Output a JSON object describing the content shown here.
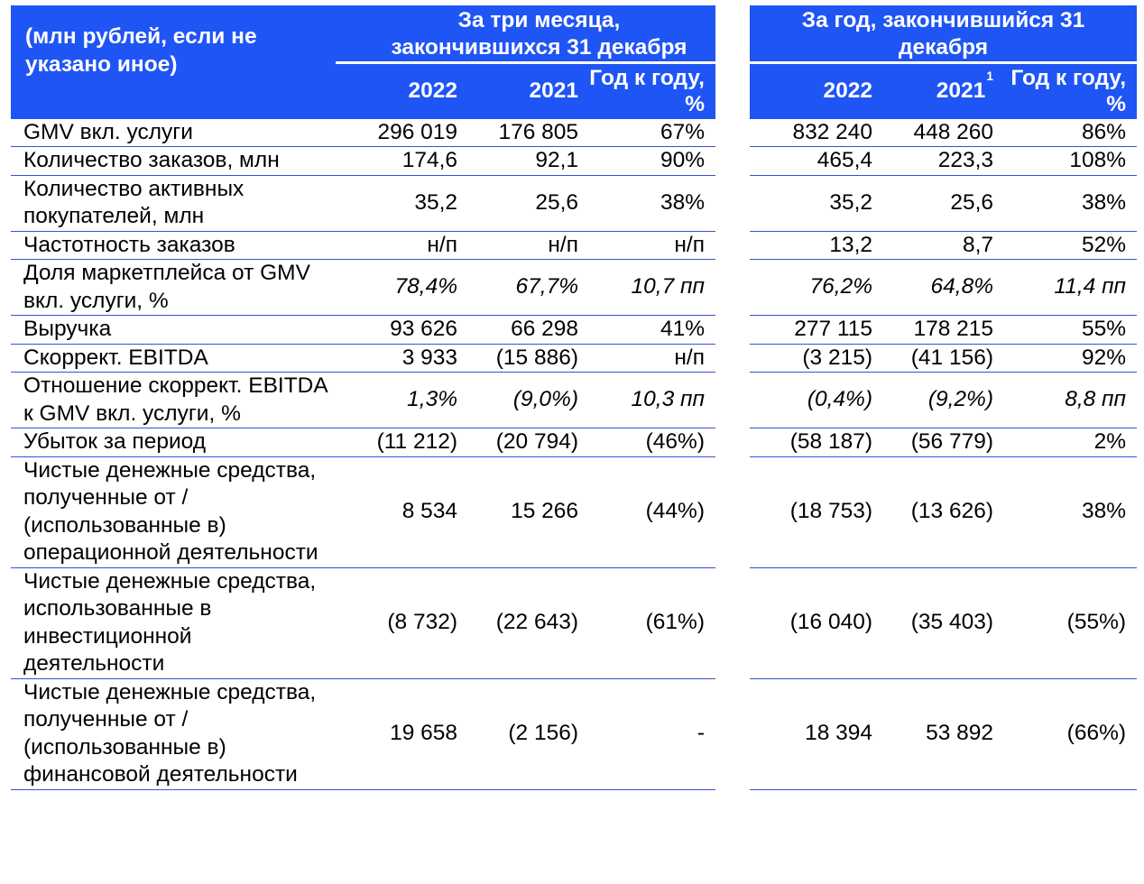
{
  "header": {
    "unit_label": "(млн рублей, если не указано иное)",
    "group_three_months": "За три месяца, закончившихся 31 декабря",
    "group_year": "За год, закончившийся 31 декабря",
    "three_months": {
      "col_2022": "2022",
      "col_2021": "2021",
      "col_yoy": "Год к году, %"
    },
    "year": {
      "col_2022": "2022",
      "col_2021": "2021",
      "col_2021_footnote": "1",
      "col_yoy": "Год к году, %"
    }
  },
  "rows": [
    {
      "label": "GMV вкл. услуги",
      "q2022": "296 019",
      "q2021": "176 805",
      "qyoy": "67%",
      "y2022": "832 240",
      "y2021": "448 260",
      "yyoy": "86%"
    },
    {
      "label": "Количество заказов, млн",
      "q2022": "174,6",
      "q2021": "92,1",
      "qyoy": "90%",
      "y2022": "465,4",
      "y2021": "223,3",
      "yyoy": "108%"
    },
    {
      "label": "Количество активных покупателей, млн",
      "q2022": "35,2",
      "q2021": "25,6",
      "qyoy": "38%",
      "y2022": "35,2",
      "y2021": "25,6",
      "yyoy": "38%"
    },
    {
      "label": "Частотность заказов",
      "q2022": "н/п",
      "q2021": "н/п",
      "qyoy": "н/п",
      "y2022": "13,2",
      "y2021": "8,7",
      "yyoy": "52%"
    },
    {
      "label": "Доля маркетплейса от GMV вкл. услуги, %",
      "q2022": "78,4%",
      "q2021": "67,7%",
      "qyoy": "10,7 пп",
      "y2022": "76,2%",
      "y2021": "64,8%",
      "yyoy": "11,4 пп"
    },
    {
      "label": "Выручка",
      "q2022": "93 626",
      "q2021": "66 298",
      "qyoy": "41%",
      "y2022": "277 115",
      "y2021": "178 215",
      "yyoy": "55%"
    },
    {
      "label": "Скоррект. EBITDA",
      "q2022": "3 933",
      "q2021": "(15 886)",
      "qyoy": "н/п",
      "y2022": "(3 215)",
      "y2021": "(41 156)",
      "yyoy": "92%"
    },
    {
      "label": "Отношение скоррект. EBITDA к GMV вкл. услуги, %",
      "q2022": "1,3%",
      "q2021": "(9,0%)",
      "qyoy": "10,3 пп",
      "y2022": "(0,4%)",
      "y2021": "(9,2%)",
      "yyoy": "8,8 пп"
    },
    {
      "label": "Убыток за период",
      "q2022": "(11 212)",
      "q2021": "(20 794)",
      "qyoy": "(46%)",
      "y2022": "(58 187)",
      "y2021": "(56 779)",
      "yyoy": "2%"
    },
    {
      "label": "Чистые денежные средства, полученные от / (использованные в) операционной деятельности",
      "q2022": "8 534",
      "q2021": "15 266",
      "qyoy": "(44%)",
      "y2022": "(18 753)",
      "y2021": "(13 626)",
      "yyoy": "38%"
    },
    {
      "label": "Чистые денежные средства, использованные в инвестиционной деятельности",
      "q2022": "(8 732)",
      "q2021": "(22 643)",
      "qyoy": "(61%)",
      "y2022": "(16 040)",
      "y2021": "(35 403)",
      "yyoy": "(55%)"
    },
    {
      "label": "Чистые денежные средства, полученные от / (использованные в) финансовой деятельности",
      "q2022": "19 658",
      "q2021": "(2 156)",
      "qyoy": "-",
      "y2022": "18 394",
      "y2021": "53 892",
      "yyoy": "(66%)"
    }
  ],
  "colors": {
    "header_bg": "#1f55f5",
    "header_text": "#ffffff",
    "row_rule": "#3a4fd6"
  }
}
